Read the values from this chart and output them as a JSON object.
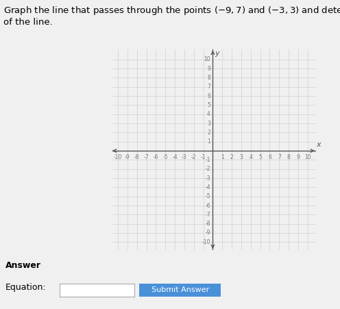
{
  "title_line1": "Graph the line that passes through the points −9, 7) and (−3, 3) and determine the",
  "title_line2": "of the line.",
  "point1": [
    -9,
    7
  ],
  "point2": [
    -3,
    3
  ],
  "xlim": [
    -10,
    10
  ],
  "ylim": [
    -10,
    10
  ],
  "xticks": [
    -10,
    -9,
    -8,
    -7,
    -6,
    -5,
    -4,
    -3,
    -2,
    -1,
    1,
    2,
    3,
    4,
    5,
    6,
    7,
    8,
    9,
    10
  ],
  "yticks": [
    -10,
    -9,
    -8,
    -7,
    -6,
    -5,
    -4,
    -3,
    -2,
    -1,
    1,
    2,
    3,
    4,
    5,
    6,
    7,
    8,
    9,
    10
  ],
  "grid_color": "#d0d0d0",
  "axis_color": "#555555",
  "bg_color": "#f0f0f0",
  "answer_label": "Answer",
  "equation_label": "Equation:",
  "submit_label": "Submit Answer",
  "submit_color": "#4a90d9",
  "title_fontsize": 9.5,
  "tick_fontsize": 5.5,
  "axis_label_fontsize": 8
}
